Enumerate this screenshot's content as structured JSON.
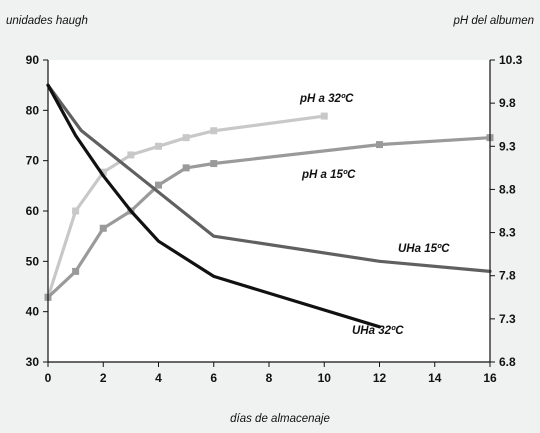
{
  "chart_data": {
    "type": "line",
    "xlabel": "días de almacenaje",
    "ylabel_left": "unidades haugh",
    "ylabel_right": "pH del albumen",
    "x_ticks": [
      "0",
      "2",
      "4",
      "6",
      "8",
      "10",
      "12",
      "14",
      "16"
    ],
    "y_left_ticks": [
      "30",
      "40",
      "50",
      "60",
      "70",
      "80",
      "90"
    ],
    "y_right_ticks": [
      "6.8",
      "7.3",
      "7.8",
      "8.3",
      "8.8",
      "9.3",
      "9.8",
      "10.3"
    ],
    "xlim": [
      0,
      16
    ],
    "ylim_left": [
      30,
      90
    ],
    "ylim_right": [
      6.8,
      10.3
    ],
    "series": [
      {
        "name": "pH a 32ºC",
        "axis": "right",
        "color": "#c8c8c8",
        "marker": "square",
        "x": [
          0,
          1,
          2,
          3,
          4,
          5,
          6,
          10
        ],
        "y": [
          7.55,
          8.55,
          9.0,
          9.2,
          9.3,
          9.4,
          9.48,
          9.65
        ]
      },
      {
        "name": "pH a 15ºC",
        "axis": "right",
        "color": "#9a9a9a",
        "marker": "square",
        "x": [
          0,
          1,
          2,
          3,
          4,
          5,
          6,
          12,
          16
        ],
        "y": [
          7.55,
          7.85,
          8.35,
          8.55,
          8.85,
          9.05,
          9.1,
          9.32,
          9.4
        ]
      },
      {
        "name": "UHa 15ºC",
        "axis": "left",
        "color": "#606060",
        "marker": "none",
        "x": [
          0,
          1.2,
          6,
          12,
          16
        ],
        "y": [
          85,
          76,
          55,
          50,
          48
        ]
      },
      {
        "name": "UHa 32ºC",
        "axis": "left",
        "color": "#111111",
        "marker": "none",
        "x": [
          0,
          1,
          2,
          3,
          4,
          6,
          12
        ],
        "y": [
          85,
          75,
          67,
          60,
          54,
          47,
          37
        ]
      }
    ],
    "series_labels": [
      "pH a 32ºC",
      "pH a 15ºC",
      "UHa 15ºC",
      "UHa 32ºC"
    ],
    "grid": false
  }
}
